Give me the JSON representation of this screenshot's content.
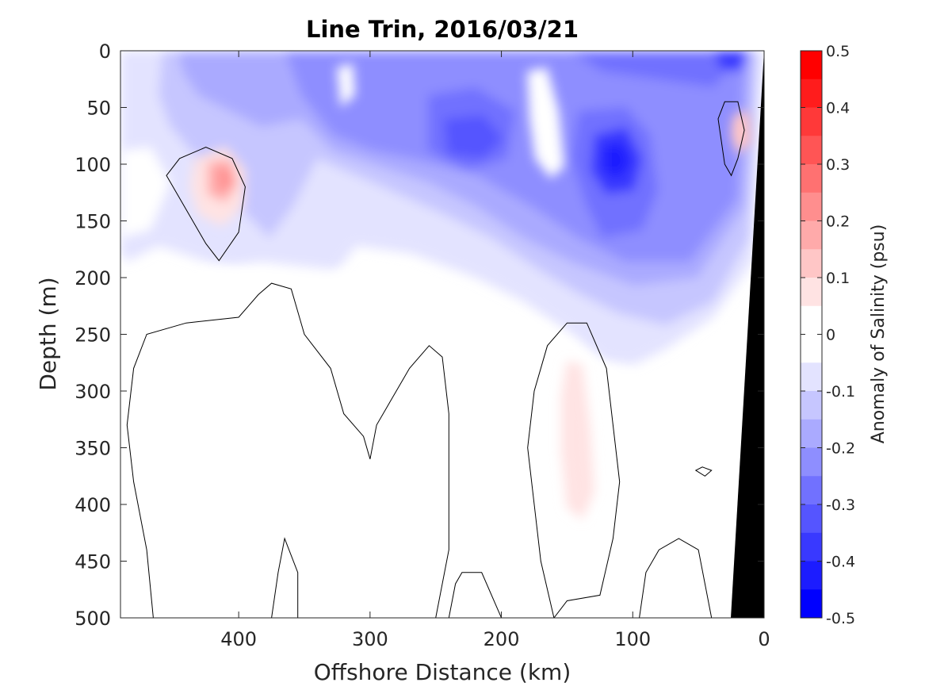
{
  "chart_data": {
    "type": "heatmap",
    "title": "Line Trin, 2016/03/21",
    "xlabel": "Offshore Distance (km)",
    "ylabel": "Depth (m)",
    "xlim": [
      490,
      0
    ],
    "ylim": [
      0,
      500
    ],
    "x_reversed": true,
    "y_reversed": true,
    "x_ticks": [
      400,
      300,
      200,
      100,
      0
    ],
    "y_ticks": [
      0,
      50,
      100,
      150,
      200,
      250,
      300,
      350,
      400,
      450,
      500
    ],
    "colorbar": {
      "label": "Anomaly of Salinity (psu)",
      "range": [
        -0.5,
        0.5
      ],
      "ticks": [
        0.5,
        0.4,
        0.3,
        0.2,
        0.1,
        0,
        -0.1,
        -0.2,
        -0.3,
        -0.4,
        -0.5
      ],
      "levels": [
        {
          "low": 0.45,
          "high": 0.5,
          "color": "#ff0000"
        },
        {
          "low": 0.4,
          "high": 0.45,
          "color": "#ff1c1c"
        },
        {
          "low": 0.35,
          "high": 0.4,
          "color": "#ff3939"
        },
        {
          "low": 0.3,
          "high": 0.35,
          "color": "#ff5555"
        },
        {
          "low": 0.25,
          "high": 0.3,
          "color": "#ff7171"
        },
        {
          "low": 0.2,
          "high": 0.25,
          "color": "#ff8e8e"
        },
        {
          "low": 0.15,
          "high": 0.2,
          "color": "#ffaaaa"
        },
        {
          "low": 0.1,
          "high": 0.15,
          "color": "#ffc6c6"
        },
        {
          "low": 0.05,
          "high": 0.1,
          "color": "#ffe3e3"
        },
        {
          "low": -0.05,
          "high": 0.05,
          "color": "#ffffff"
        },
        {
          "low": -0.1,
          "high": -0.05,
          "color": "#e3e3ff"
        },
        {
          "low": -0.15,
          "high": -0.1,
          "color": "#c6c6ff"
        },
        {
          "low": -0.2,
          "high": -0.15,
          "color": "#aaaaff"
        },
        {
          "low": -0.25,
          "high": -0.2,
          "color": "#8e8eff"
        },
        {
          "low": -0.3,
          "high": -0.25,
          "color": "#7171ff"
        },
        {
          "low": -0.35,
          "high": -0.3,
          "color": "#5555ff"
        },
        {
          "low": -0.4,
          "high": -0.35,
          "color": "#3939ff"
        },
        {
          "low": -0.45,
          "high": -0.4,
          "color": "#1c1cff"
        },
        {
          "low": -0.5,
          "high": -0.45,
          "color": "#0000ff"
        }
      ]
    },
    "zero_contours": [
      [
        [
          455,
          110
        ],
        [
          440,
          140
        ],
        [
          425,
          170
        ],
        [
          415,
          185
        ],
        [
          400,
          160
        ],
        [
          395,
          120
        ],
        [
          405,
          95
        ],
        [
          425,
          85
        ],
        [
          445,
          95
        ]
      ],
      [
        [
          465,
          500
        ],
        [
          470,
          440
        ],
        [
          480,
          380
        ],
        [
          485,
          330
        ],
        [
          480,
          280
        ],
        [
          470,
          250
        ],
        [
          440,
          240
        ],
        [
          400,
          235
        ],
        [
          385,
          215
        ],
        [
          375,
          205
        ],
        [
          360,
          210
        ],
        [
          350,
          250
        ],
        [
          330,
          280
        ],
        [
          320,
          320
        ],
        [
          305,
          340
        ],
        [
          300,
          360
        ],
        [
          295,
          330
        ],
        [
          285,
          310
        ],
        [
          270,
          280
        ],
        [
          255,
          260
        ],
        [
          245,
          270
        ],
        [
          240,
          320
        ],
        [
          240,
          380
        ],
        [
          240,
          440
        ],
        [
          250,
          500
        ]
      ],
      [
        [
          160,
          500
        ],
        [
          170,
          450
        ],
        [
          175,
          400
        ],
        [
          180,
          350
        ],
        [
          175,
          300
        ],
        [
          165,
          260
        ],
        [
          150,
          240
        ],
        [
          135,
          240
        ],
        [
          120,
          280
        ],
        [
          115,
          330
        ],
        [
          110,
          380
        ],
        [
          115,
          430
        ],
        [
          125,
          480
        ],
        [
          150,
          485
        ]
      ],
      [
        [
          375,
          500
        ],
        [
          370,
          460
        ],
        [
          365,
          430
        ],
        [
          355,
          460
        ],
        [
          355,
          500
        ]
      ],
      [
        [
          240,
          500
        ],
        [
          235,
          470
        ],
        [
          230,
          460
        ],
        [
          215,
          460
        ],
        [
          200,
          500
        ]
      ],
      [
        [
          95,
          500
        ],
        [
          90,
          460
        ],
        [
          80,
          440
        ],
        [
          65,
          430
        ],
        [
          50,
          440
        ],
        [
          45,
          470
        ],
        [
          40,
          500
        ]
      ],
      [
        [
          35,
          60
        ],
        [
          30,
          100
        ],
        [
          25,
          110
        ],
        [
          20,
          95
        ],
        [
          15,
          70
        ],
        [
          20,
          45
        ],
        [
          30,
          45
        ]
      ],
      [
        [
          52,
          370
        ],
        [
          45,
          375
        ],
        [
          40,
          370
        ],
        [
          47,
          367
        ]
      ]
    ],
    "annotations": [
      "coastal bathymetry (black) at 0-25 km"
    ]
  }
}
